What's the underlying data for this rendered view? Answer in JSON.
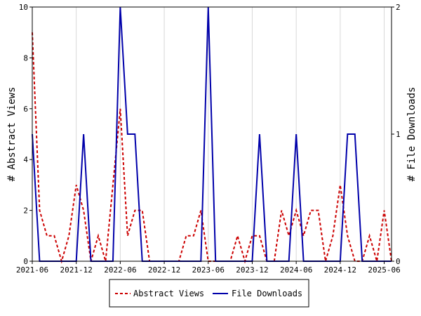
{
  "chart_data": {
    "type": "line",
    "title": "",
    "xlabel": "",
    "ylabel_left": "# Abstract Views",
    "ylabel_right": "# File Downloads",
    "ylim_left": [
      0,
      10
    ],
    "ylim_right": [
      0,
      2
    ],
    "yticks_left": [
      "0",
      "2",
      "4",
      "6",
      "8",
      "10"
    ],
    "yticks_right": [
      "0",
      "1",
      "2"
    ],
    "x_tick_labels": [
      "2021-06",
      "2021-12",
      "2022-06",
      "2022-12",
      "2023-06",
      "2023-12",
      "2024-06",
      "2024-12",
      "2025-06"
    ],
    "months": [
      "2021-06",
      "2021-07",
      "2021-08",
      "2021-09",
      "2021-10",
      "2021-11",
      "2021-12",
      "2022-01",
      "2022-02",
      "2022-03",
      "2022-04",
      "2022-05",
      "2022-06",
      "2022-07",
      "2022-08",
      "2022-09",
      "2022-10",
      "2022-11",
      "2022-12",
      "2023-01",
      "2023-02",
      "2023-03",
      "2023-04",
      "2023-05",
      "2023-06",
      "2023-07",
      "2023-08",
      "2023-09",
      "2023-10",
      "2023-11",
      "2023-12",
      "2024-01",
      "2024-02",
      "2024-03",
      "2024-04",
      "2024-05",
      "2024-06",
      "2024-07",
      "2024-08",
      "2024-09",
      "2024-10",
      "2024-11",
      "2024-12",
      "2025-01",
      "2025-02",
      "2025-03",
      "2025-04",
      "2025-05",
      "2025-06",
      "2025-07"
    ],
    "grid": "vertical",
    "legend": "bottom",
    "series": [
      {
        "name": "Abstract Views",
        "axis": "left",
        "color": "#cc0000",
        "style": "dashed",
        "values": [
          9,
          2,
          1,
          1,
          0,
          1,
          3,
          2,
          0,
          1,
          0,
          3,
          6,
          1,
          2,
          2,
          0,
          0,
          0,
          0,
          0,
          1,
          1,
          2,
          0,
          0,
          0,
          0,
          1,
          0,
          1,
          1,
          0,
          0,
          2,
          1,
          2,
          1,
          2,
          2,
          0,
          1,
          3,
          1,
          0,
          0,
          1,
          0,
          2,
          0
        ]
      },
      {
        "name": "File Downloads",
        "axis": "right",
        "color": "#0000aa",
        "style": "solid",
        "values": [
          1,
          0,
          0,
          0,
          0,
          0,
          0,
          1,
          0,
          0,
          0,
          0,
          2,
          1,
          1,
          0,
          0,
          0,
          0,
          0,
          0,
          0,
          0,
          0,
          2,
          0,
          0,
          0,
          0,
          0,
          0,
          1,
          0,
          0,
          0,
          0,
          1,
          0,
          0,
          0,
          0,
          0,
          0,
          1,
          1,
          0,
          0,
          0,
          0,
          0
        ]
      }
    ]
  }
}
